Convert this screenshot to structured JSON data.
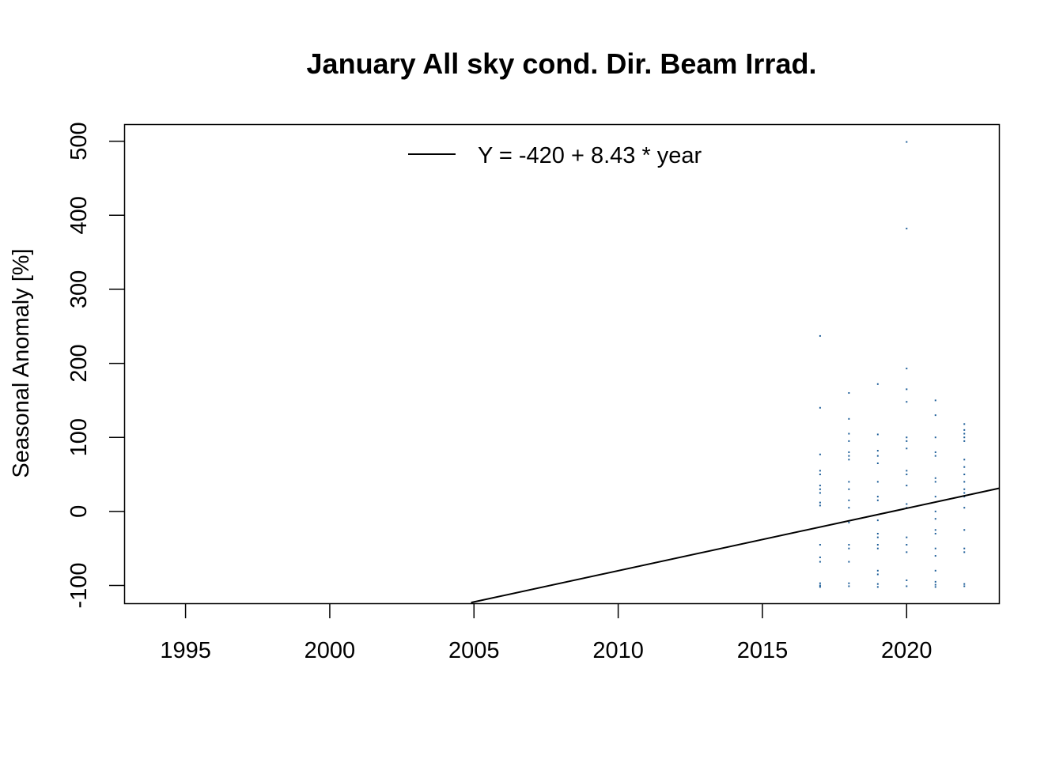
{
  "chart_data": {
    "type": "scatter",
    "title": "January All sky cond. Dir. Beam Irrad.",
    "xlabel": "",
    "ylabel": "Seasonal Anomaly [%]",
    "xlim": [
      1992.9,
      2023.2
    ],
    "ylim": [
      -124,
      522
    ],
    "xticks": [
      1995,
      2000,
      2005,
      2010,
      2015,
      2020
    ],
    "yticks": [
      -100,
      0,
      100,
      200,
      300,
      400,
      500
    ],
    "point_color": "#1f5f99",
    "line_color": "#000000",
    "legend": {
      "position": "top",
      "entries": [
        {
          "label": "Y = -420 + 8.43 * year"
        }
      ]
    },
    "trend": {
      "intercept": -420,
      "slope": 8.43,
      "label": "Y = -420 + 8.43 * year",
      "x_start": 2004.9,
      "x_end": 2023.2
    },
    "series": [
      {
        "x": [
          2017,
          2017,
          2017,
          2017,
          2017,
          2017,
          2017,
          2017,
          2017,
          2017,
          2017,
          2017,
          2017,
          2017,
          2017,
          2017,
          2018,
          2018,
          2018,
          2018,
          2018,
          2018,
          2018,
          2018,
          2018,
          2018,
          2018,
          2018,
          2018,
          2018,
          2018,
          2018,
          2018,
          2019,
          2019,
          2019,
          2019,
          2019,
          2019,
          2019,
          2019,
          2019,
          2019,
          2019,
          2019,
          2019,
          2019,
          2019,
          2019,
          2019,
          2020,
          2020,
          2020,
          2020,
          2020,
          2020,
          2020,
          2020,
          2020,
          2020,
          2020,
          2020,
          2020,
          2020,
          2020,
          2020,
          2020,
          2020,
          2021,
          2021,
          2021,
          2021,
          2021,
          2021,
          2021,
          2021,
          2021,
          2021,
          2021,
          2021,
          2021,
          2021,
          2021,
          2021,
          2021,
          2021,
          2022,
          2022,
          2022,
          2022,
          2022,
          2022,
          2022,
          2022,
          2022,
          2022,
          2022,
          2022,
          2022,
          2022,
          2022,
          2022,
          2022,
          2022
        ],
        "y": [
          237,
          140,
          77,
          55,
          50,
          35,
          30,
          25,
          12,
          8,
          -45,
          -62,
          -68,
          -97,
          -100,
          -102,
          160,
          125,
          105,
          95,
          80,
          75,
          70,
          40,
          30,
          15,
          5,
          -15,
          -45,
          -50,
          -68,
          -97,
          -101,
          172,
          104,
          82,
          75,
          65,
          40,
          20,
          15,
          -12,
          -30,
          -35,
          -45,
          -50,
          -80,
          -85,
          -98,
          -102,
          499,
          382,
          193,
          165,
          148,
          100,
          95,
          85,
          55,
          50,
          35,
          10,
          5,
          -35,
          -45,
          -55,
          -93,
          -101,
          150,
          130,
          100,
          80,
          75,
          45,
          40,
          20,
          0,
          -10,
          -25,
          -30,
          -50,
          -60,
          -80,
          -95,
          -99,
          -102,
          118,
          110,
          105,
          100,
          95,
          70,
          60,
          50,
          40,
          30,
          25,
          20,
          5,
          -25,
          -50,
          -55,
          -98,
          -101
        ]
      }
    ]
  }
}
